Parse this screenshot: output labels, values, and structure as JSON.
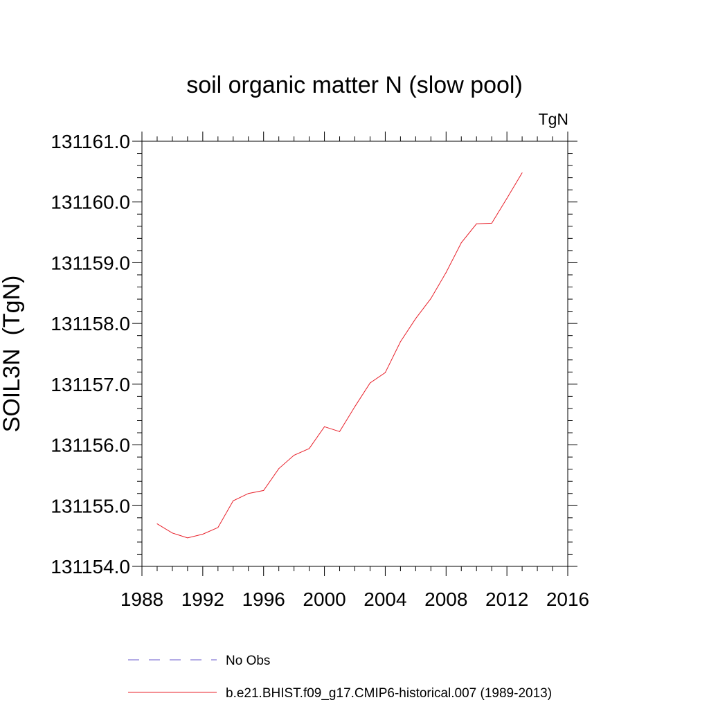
{
  "chart_data": {
    "type": "line",
    "title": "soil organic matter N (slow pool)",
    "units_label": "TgN",
    "ylabel": "SOIL3N  (TgN)",
    "xlabel": "",
    "xlim": [
      1988,
      2016
    ],
    "ylim": [
      131154.0,
      131161.0
    ],
    "x_major_ticks": [
      1988,
      1992,
      1996,
      2000,
      2004,
      2008,
      2012,
      2016
    ],
    "x_tick_labels": [
      "1988",
      "1992",
      "1996",
      "2000",
      "2004",
      "2008",
      "2012",
      "2016"
    ],
    "y_major_ticks": [
      131154.0,
      131155.0,
      131156.0,
      131157.0,
      131158.0,
      131159.0,
      131160.0,
      131161.0
    ],
    "y_tick_labels": [
      "131154.0",
      "131155.0",
      "131156.0",
      "131157.0",
      "131158.0",
      "131159.0",
      "131160.0",
      "131161.0"
    ],
    "grid": false,
    "legend_position": "bottom",
    "series": [
      {
        "name": "No Obs",
        "color": "#6a5acd",
        "dash": "dashed",
        "x": [],
        "values": []
      },
      {
        "name": "b.e21.BHIST.f09_g17.CMIP6-historical.007 (1989-2013)",
        "color": "#e8202a",
        "dash": "solid",
        "x": [
          1989,
          1990,
          1991,
          1992,
          1993,
          1994,
          1995,
          1996,
          1997,
          1998,
          1999,
          2000,
          2001,
          2002,
          2003,
          2004,
          2005,
          2006,
          2007,
          2008,
          2009,
          2010,
          2011,
          2012,
          2013
        ],
        "values": [
          131154.7,
          131154.55,
          131154.47,
          131154.53,
          131154.64,
          131155.08,
          131155.2,
          131155.25,
          131155.61,
          131155.83,
          131155.94,
          131156.3,
          131156.22,
          131156.63,
          131157.02,
          131157.19,
          131157.7,
          131158.08,
          131158.41,
          131158.84,
          131159.33,
          131159.64,
          131159.65,
          131160.06,
          131160.48
        ]
      }
    ]
  }
}
